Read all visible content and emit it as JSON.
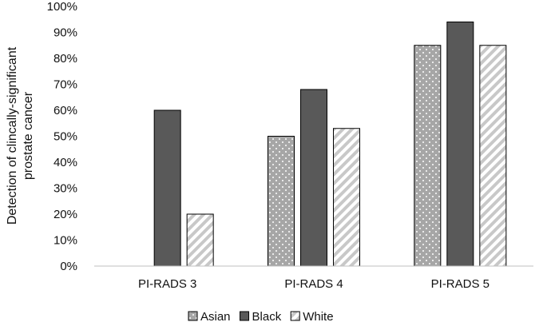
{
  "chart_data": {
    "type": "bar",
    "ylabel_lines": [
      "Detection of clincally-significant",
      "prostate cancer"
    ],
    "categories": [
      "PI-RADS 3",
      "PI-RADS 4",
      "PI-RADS 5"
    ],
    "ylim": [
      0,
      100
    ],
    "yticks": [
      "0%",
      "10%",
      "20%",
      "30%",
      "40%",
      "50%",
      "60%",
      "70%",
      "80%",
      "90%",
      "100%"
    ],
    "grid": false,
    "legend_position": "bottom",
    "series": [
      {
        "name": "Asian",
        "values": [
          0,
          50,
          85
        ],
        "pattern": "dots",
        "color": "#a6a6a6"
      },
      {
        "name": "Black",
        "values": [
          60,
          68,
          94
        ],
        "pattern": "solid",
        "color": "#595959"
      },
      {
        "name": "White",
        "values": [
          20,
          53,
          85
        ],
        "pattern": "diagonal",
        "color": "#c8c8c8"
      }
    ]
  }
}
